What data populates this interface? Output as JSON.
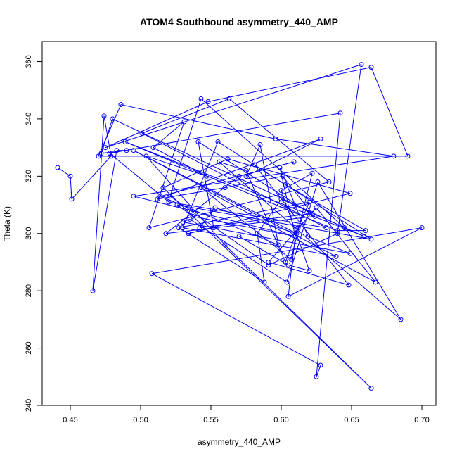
{
  "colors": {
    "series": "#0000ff",
    "axis": "#000000",
    "background": "#ffffff"
  },
  "chart_data": {
    "type": "line",
    "title": "ATOM4 Southbound asymmetry_440_AMP",
    "xlabel": "asymmetry_440_AMP",
    "ylabel": "Theta (K)",
    "xlim": [
      0.43,
      0.71
    ],
    "ylim": [
      240,
      367
    ],
    "xticks": [
      0.45,
      0.5,
      0.55,
      0.6,
      0.65,
      0.7
    ],
    "xtick_labels": [
      "0.45",
      "0.50",
      "0.55",
      "0.60",
      "0.65",
      "0.70"
    ],
    "yticks": [
      240,
      260,
      280,
      300,
      320,
      340,
      360
    ],
    "ytick_labels": [
      "240",
      "260",
      "280",
      "300",
      "320",
      "340",
      "360"
    ],
    "grid": false,
    "legend": "none",
    "markers": "open-circle",
    "series": [
      {
        "x": [
          0.441,
          0.45,
          0.451,
          0.479,
          0.474,
          0.466,
          0.483,
          0.49,
          0.472,
          0.48,
          0.645,
          0.543,
          0.521,
          0.591,
          0.64,
          0.657,
          0.475,
          0.548,
          0.664,
          0.69,
          0.47,
          0.486,
          0.596,
          0.68,
          0.495,
          0.61,
          0.605,
          0.7,
          0.508,
          0.628,
          0.625,
          0.642,
          0.478,
          0.52,
          0.632,
          0.501,
          0.563,
          0.634,
          0.506,
          0.531,
          0.509,
          0.547,
          0.504,
          0.56,
          0.664,
          0.516,
          0.562,
          0.649,
          0.534,
          0.552,
          0.541,
          0.624,
          0.518,
          0.57,
          0.609,
          0.514,
          0.598,
          0.585,
          0.575,
          0.628,
          0.512,
          0.56,
          0.601,
          0.622,
          0.542,
          0.553,
          0.611,
          0.495,
          0.639,
          0.53,
          0.555,
          0.664,
          0.526,
          0.537,
          0.61,
          0.599,
          0.619,
          0.649,
          0.53,
          0.535,
          0.604,
          0.626,
          0.685,
          0.556,
          0.575,
          0.603,
          0.612,
          0.62,
          0.527,
          0.588,
          0.583,
          0.6,
          0.659,
          0.489,
          0.64,
          0.66,
          0.603,
          0.581,
          0.648,
          0.591,
          0.625,
          0.667,
          0.543,
          0.607,
          0.622,
          0.6,
          0.62,
          0.605,
          0.57
        ],
        "y": [
          323,
          320,
          312,
          327,
          341,
          280,
          329,
          329,
          328,
          340,
          302,
          347,
          313,
          289,
          300,
          359,
          330,
          346,
          358,
          327,
          327,
          345,
          333,
          327,
          313,
          299,
          278,
          302,
          286,
          254,
          250,
          342,
          328,
          311,
          302,
          335,
          347,
          318,
          302,
          339,
          330,
          320,
          327,
          296,
          246,
          316,
          326,
          314,
          300,
          302,
          332,
          306,
          300,
          320,
          325,
          313,
          296,
          331,
          320,
          333,
          312,
          316,
          320,
          307,
          302,
          309,
          300,
          329,
          292,
          302,
          332,
          298,
          310,
          306,
          299,
          323,
          299,
          293,
          304,
          305,
          283,
          318,
          270,
          325,
          322,
          290,
          302,
          311,
          302,
          283,
          300,
          312,
          299,
          332,
          301,
          301,
          317,
          324,
          282,
          290,
          309,
          283,
          316,
          291,
          321,
          315,
          287,
          289,
          299
        ]
      }
    ]
  }
}
